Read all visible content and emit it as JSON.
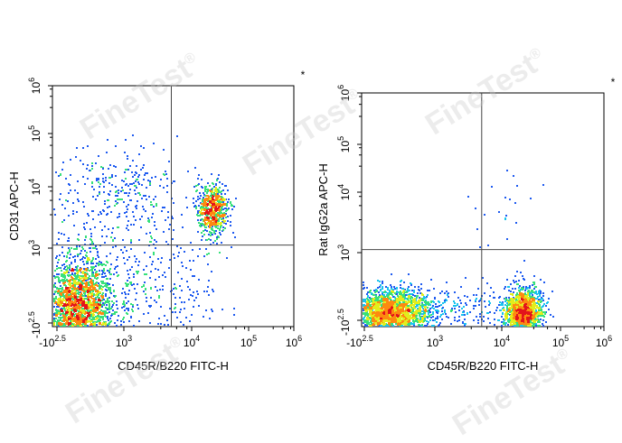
{
  "watermark": "FineTest",
  "watermark_mark": "®",
  "chart_data": [
    {
      "type": "scatter",
      "subtype": "flow-cytometry-density-dot-plot",
      "xlabel": "CD45R/B220 FITC-H",
      "ylabel": "CD31 APC-H",
      "x_scale": "biexponential",
      "y_scale": "biexponential",
      "x_ticks": [
        "-10^2.5",
        "10^3",
        "10^4",
        "10^5",
        "10^6"
      ],
      "y_ticks": [
        "-10^2.5",
        "10^3",
        "10^4",
        "10^5",
        "10^6"
      ],
      "gate_lines": {
        "x": 3.7,
        "y": 3.05
      },
      "corner_marker": "*",
      "colormap": [
        "#0b1aa8",
        "#1f5bf0",
        "#19c3ee",
        "#37e07b",
        "#e2ee1c",
        "#fd8a10",
        "#e3141b"
      ],
      "populations": [
        {
          "name": "double-negative cluster",
          "center_log": [
            2.45,
            2.35
          ],
          "spread_log": [
            0.22,
            0.28
          ],
          "events": 2600
        },
        {
          "name": "CD31+ cluster",
          "center_log": [
            4.35,
            3.65
          ],
          "spread_log": [
            0.14,
            0.2
          ],
          "events": 700
        },
        {
          "name": "scattered CD31+ events",
          "center_log": [
            2.9,
            3.8
          ],
          "spread_log": [
            0.45,
            0.45
          ],
          "events": 380
        },
        {
          "name": "bridging events",
          "center_log": [
            3.4,
            2.6
          ],
          "spread_log": [
            0.5,
            0.3
          ],
          "events": 260
        }
      ]
    },
    {
      "type": "scatter",
      "subtype": "flow-cytometry-density-dot-plot",
      "xlabel": "CD45R/B220 FITC-H",
      "ylabel": "Rat IgG2a APC-H",
      "x_scale": "biexponential",
      "y_scale": "biexponential",
      "x_ticks": [
        "-10^2.5",
        "10^3",
        "10^4",
        "10^5",
        "10^6"
      ],
      "y_ticks": [
        "-10^2.5",
        "10^3",
        "10^4",
        "10^5",
        "10^6"
      ],
      "gate_lines": {
        "x": 3.7,
        "y": 3.05
      },
      "corner_marker": "*",
      "colormap": [
        "#0b1aa8",
        "#1f5bf0",
        "#19c3ee",
        "#37e07b",
        "#e2ee1c",
        "#fd8a10",
        "#e3141b"
      ],
      "populations": [
        {
          "name": "B220- cluster",
          "center_log": [
            2.5,
            2.3
          ],
          "spread_log": [
            0.24,
            0.14
          ],
          "events": 2200
        },
        {
          "name": "B220+ cluster",
          "center_log": [
            4.35,
            2.3
          ],
          "spread_log": [
            0.15,
            0.14
          ],
          "events": 1500
        },
        {
          "name": "bridging events",
          "center_log": [
            3.6,
            2.35
          ],
          "spread_log": [
            0.45,
            0.14
          ],
          "events": 180
        },
        {
          "name": "sparse upper events",
          "center_log": [
            4.1,
            3.6
          ],
          "spread_log": [
            0.4,
            0.5
          ],
          "events": 25
        }
      ]
    }
  ]
}
